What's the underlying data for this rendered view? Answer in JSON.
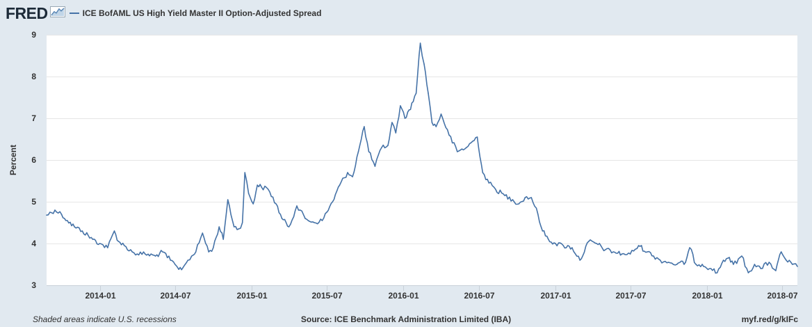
{
  "header": {
    "logo_text": "FRED",
    "logo_icon": "chart-line-icon"
  },
  "legend": {
    "series_label": "ICE BofAML US High Yield Master II Option-Adjusted Spread",
    "color": "#4572a7"
  },
  "footer": {
    "recession_note": "Shaded areas indicate U.S. recessions",
    "source": "Source: ICE Benchmark Administration Limited (IBA)",
    "short_url": "myf.red/g/kIFc"
  },
  "chart_data": {
    "type": "line",
    "title": "",
    "xlabel": "",
    "ylabel": "Percent",
    "ylim": [
      3,
      9
    ],
    "yticks": [
      3,
      4,
      5,
      6,
      7,
      8,
      9
    ],
    "xlim": [
      "2013-08-26",
      "2018-08-06"
    ],
    "xticks": [
      "2014-01",
      "2014-07",
      "2015-01",
      "2015-07",
      "2016-01",
      "2016-07",
      "2017-01",
      "2017-07",
      "2018-01",
      "2018-07"
    ],
    "grid": true,
    "legend_position": "top-left",
    "series": [
      {
        "name": "ICE BofAML US High Yield Master II Option-Adjusted Spread",
        "color": "#4572a7",
        "x": [
          "2013-08-26",
          "2013-09-15",
          "2013-10-01",
          "2013-10-15",
          "2013-11-01",
          "2013-11-20",
          "2013-12-15",
          "2014-01-01",
          "2014-01-20",
          "2014-02-05",
          "2014-02-15",
          "2014-03-01",
          "2014-03-20",
          "2014-04-01",
          "2014-04-20",
          "2014-05-15",
          "2014-06-01",
          "2014-06-20",
          "2014-07-01",
          "2014-07-10",
          "2014-07-20",
          "2014-08-01",
          "2014-08-10",
          "2014-08-20",
          "2014-09-05",
          "2014-09-20",
          "2014-10-01",
          "2014-10-15",
          "2014-10-25",
          "2014-11-05",
          "2014-11-20",
          "2014-12-01",
          "2014-12-10",
          "2014-12-16",
          "2014-12-25",
          "2015-01-05",
          "2015-01-15",
          "2015-01-25",
          "2015-02-10",
          "2015-03-01",
          "2015-03-15",
          "2015-04-01",
          "2015-04-20",
          "2015-05-10",
          "2015-06-01",
          "2015-06-20",
          "2015-07-01",
          "2015-07-15",
          "2015-08-01",
          "2015-08-20",
          "2015-09-01",
          "2015-09-15",
          "2015-09-29",
          "2015-10-10",
          "2015-10-25",
          "2015-11-10",
          "2015-11-25",
          "2015-12-05",
          "2015-12-14",
          "2015-12-25",
          "2016-01-05",
          "2016-01-15",
          "2016-01-25",
          "2016-02-01",
          "2016-02-08",
          "2016-02-11",
          "2016-02-20",
          "2016-03-01",
          "2016-03-10",
          "2016-03-20",
          "2016-04-01",
          "2016-04-20",
          "2016-05-10",
          "2016-06-01",
          "2016-06-27",
          "2016-07-10",
          "2016-07-25",
          "2016-08-10",
          "2016-09-01",
          "2016-09-20",
          "2016-10-05",
          "2016-10-20",
          "2016-11-04",
          "2016-11-20",
          "2016-12-01",
          "2016-12-15",
          "2017-01-01",
          "2017-01-20",
          "2017-02-10",
          "2017-03-01",
          "2017-03-22",
          "2017-04-10",
          "2017-05-01",
          "2017-05-20",
          "2017-06-10",
          "2017-06-30",
          "2017-07-20",
          "2017-08-10",
          "2017-08-25",
          "2017-09-10",
          "2017-09-30",
          "2017-10-20",
          "2017-11-10",
          "2017-11-20",
          "2017-12-05",
          "2017-12-20",
          "2018-01-10",
          "2018-01-25",
          "2018-02-09",
          "2018-02-20",
          "2018-03-05",
          "2018-03-25",
          "2018-04-10",
          "2018-04-25",
          "2018-05-10",
          "2018-05-30",
          "2018-06-15",
          "2018-06-28",
          "2018-07-10",
          "2018-07-25",
          "2018-08-06"
        ],
        "values": [
          4.68,
          4.8,
          4.7,
          4.55,
          4.4,
          4.3,
          4.1,
          4.0,
          3.9,
          4.3,
          4.05,
          3.95,
          3.8,
          3.75,
          3.75,
          3.7,
          3.8,
          3.6,
          3.5,
          3.38,
          3.42,
          3.6,
          3.7,
          3.8,
          4.25,
          3.8,
          3.9,
          4.4,
          4.1,
          5.05,
          4.4,
          4.35,
          4.5,
          5.7,
          5.2,
          4.95,
          5.4,
          5.35,
          5.3,
          4.95,
          4.6,
          4.4,
          4.9,
          4.6,
          4.5,
          4.55,
          4.75,
          5.0,
          5.4,
          5.7,
          5.6,
          6.2,
          6.8,
          6.2,
          5.85,
          6.3,
          6.35,
          6.9,
          6.65,
          7.3,
          7.0,
          7.2,
          7.4,
          7.6,
          8.5,
          8.8,
          8.3,
          7.6,
          6.9,
          6.8,
          7.1,
          6.6,
          6.2,
          6.3,
          6.55,
          5.7,
          5.45,
          5.3,
          5.15,
          5.05,
          4.95,
          5.1,
          5.1,
          4.7,
          4.3,
          4.1,
          4.0,
          3.95,
          3.9,
          3.6,
          4.05,
          4.0,
          3.85,
          3.8,
          3.75,
          3.75,
          3.95,
          3.8,
          3.7,
          3.6,
          3.55,
          3.5,
          3.55,
          3.9,
          3.5,
          3.5,
          3.4,
          3.3,
          3.6,
          3.65,
          3.5,
          3.7,
          3.3,
          3.5,
          3.4,
          3.55,
          3.35,
          3.8,
          3.6,
          3.5,
          3.45
        ]
      }
    ]
  }
}
